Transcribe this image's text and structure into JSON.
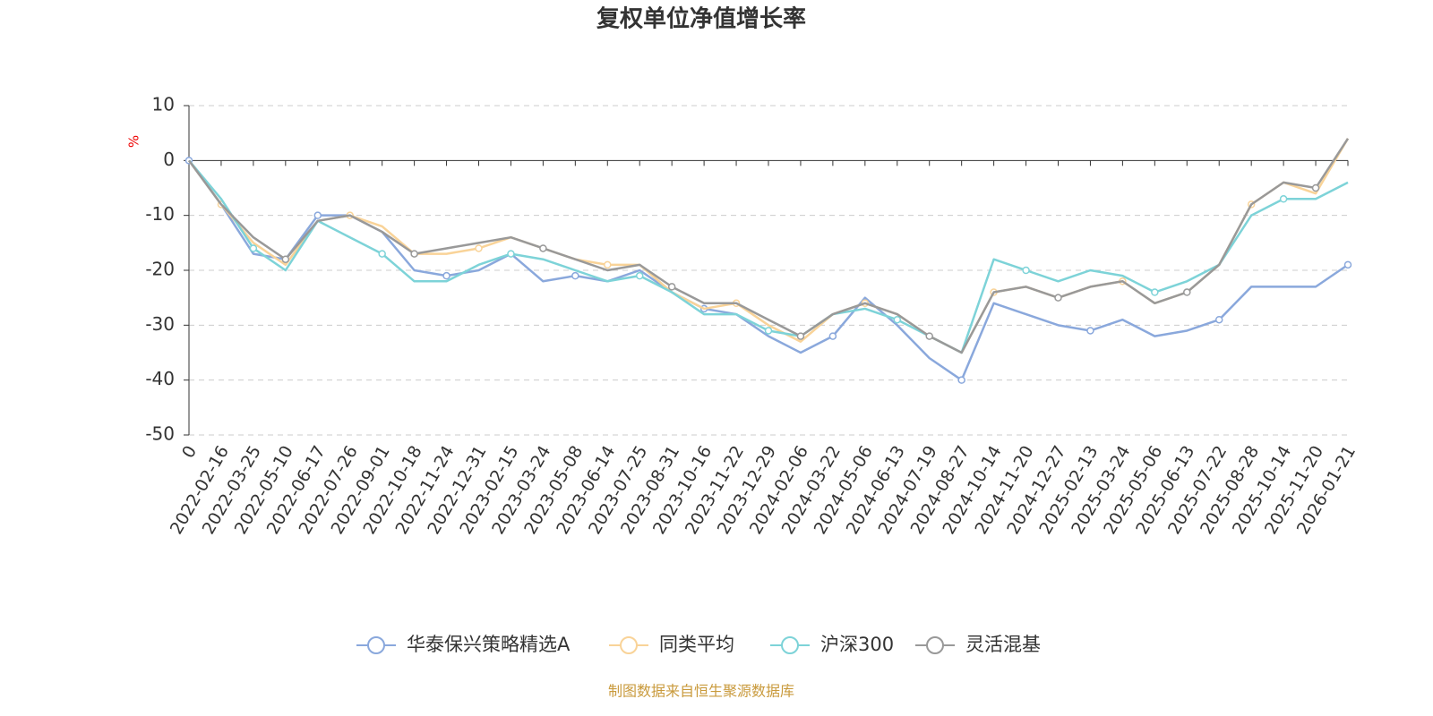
{
  "chart_data": {
    "type": "line",
    "title": "复权单位净值增长率",
    "ylabel": "%",
    "source": "制图数据来自恒生聚源数据库",
    "categories": [
      "0",
      "2022-02-16",
      "2022-03-25",
      "2022-05-10",
      "2022-06-17",
      "2022-07-26",
      "2022-09-01",
      "2022-10-18",
      "2022-11-24",
      "2022-12-31",
      "2023-02-15",
      "2023-03-24",
      "2023-05-08",
      "2023-06-14",
      "2023-07-25",
      "2023-08-31",
      "2023-10-16",
      "2023-11-22",
      "2023-12-29",
      "2024-02-06",
      "2024-03-22",
      "2024-05-06",
      "2024-06-13",
      "2024-07-19",
      "2024-08-27",
      "2024-10-14",
      "2024-11-20",
      "2024-12-27",
      "2025-02-13",
      "2025-03-24",
      "2025-05-06",
      "2025-06-13",
      "2025-07-22",
      "2025-08-28",
      "2025-10-14",
      "2025-11-20",
      "2026-01-21"
    ],
    "series": [
      {
        "name": "华泰保兴策略精选A",
        "color": "#8aa8dc",
        "values": [
          0,
          -8,
          -17,
          -18,
          -10,
          -10,
          -13,
          -20,
          -21,
          -20,
          -17,
          -22,
          -21,
          -22,
          -20,
          -24,
          -27,
          -28,
          -32,
          -35,
          -32,
          -25,
          -30,
          -36,
          -40,
          -26,
          -28,
          -30,
          -31,
          -29,
          -32,
          -31,
          -29,
          -23,
          -23,
          -23,
          -19
        ]
      },
      {
        "name": "同类平均",
        "color": "#f9d398",
        "values": [
          0,
          -8,
          -15,
          -19,
          -11,
          -10,
          -12,
          -17,
          -17,
          -16,
          -14,
          -16,
          -18,
          -19,
          -19,
          -24,
          -27,
          -26,
          -30,
          -33,
          -28,
          -26,
          -28,
          -32,
          -35,
          -24,
          -23,
          -25,
          -23,
          -22,
          -26,
          -24,
          -19,
          -8,
          -4,
          -6,
          4
        ]
      },
      {
        "name": "沪深300",
        "color": "#7dd3d8",
        "values": [
          0,
          -7,
          -16,
          -20,
          -11,
          -14,
          -17,
          -22,
          -22,
          -19,
          -17,
          -18,
          -20,
          -22,
          -21,
          -24,
          -28,
          -28,
          -31,
          -32,
          -28,
          -27,
          -29,
          -32,
          -35,
          -18,
          -20,
          -22,
          -20,
          -21,
          -24,
          -22,
          -19,
          -10,
          -7,
          -7,
          -4
        ]
      },
      {
        "name": "灵活混基",
        "color": "#999999",
        "values": [
          0,
          -8,
          -14,
          -18,
          -11,
          -10,
          -13,
          -17,
          -16,
          -15,
          -14,
          -16,
          -18,
          -20,
          -19,
          -23,
          -26,
          -26,
          -29,
          -32,
          -28,
          -26,
          -28,
          -32,
          -35,
          -24,
          -23,
          -25,
          -23,
          -22,
          -26,
          -24,
          -19,
          -8,
          -4,
          -5,
          4
        ]
      }
    ],
    "ylim": [
      -50,
      10
    ],
    "yticks": [
      -50,
      -40,
      -30,
      -20,
      -10,
      0,
      10
    ],
    "grid": true
  }
}
